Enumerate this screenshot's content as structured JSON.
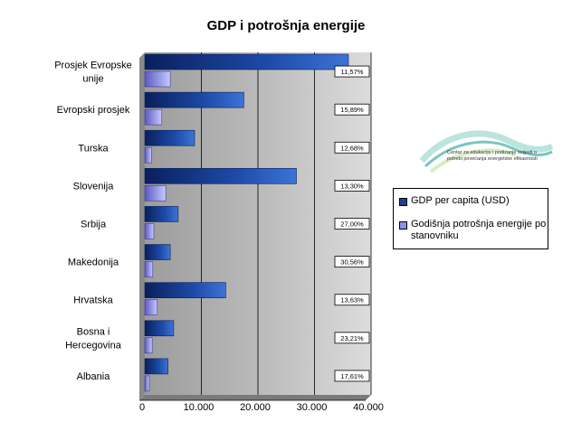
{
  "chart_data": {
    "type": "bar",
    "title": "GDP i potrošnja energije",
    "categories": [
      "Prosjek Evropske unije",
      "Evropski prosjek",
      "Turska",
      "Slovenija",
      "Srbija",
      "Makedonija",
      "Hrvatska",
      "Bosna i Hercegovina",
      "Albania"
    ],
    "category_lines": [
      [
        "Prosjek Evropske",
        "unije"
      ],
      [
        "Evropski prosjek"
      ],
      [
        "Turska"
      ],
      [
        "Slovenija"
      ],
      [
        "Srbija"
      ],
      [
        "Makedonija"
      ],
      [
        "Hrvatska"
      ],
      [
        "Bosna i",
        "Hercegovina"
      ],
      [
        "Albania"
      ]
    ],
    "series": [
      {
        "name": "GDP per capita (USD)",
        "values": [
          36000,
          17500,
          8800,
          26800,
          5900,
          4500,
          14300,
          5100,
          4100
        ],
        "color": "#1f3f8f"
      },
      {
        "name": "Godišnja potrošnja energije po stanovniku",
        "values": [
          4500,
          3000,
          1200,
          3700,
          1600,
          1400,
          2200,
          1300,
          800
        ],
        "color": "#8f8fe8"
      }
    ],
    "annotations": [
      "11,57%",
      "15,89%",
      "12,68%",
      "13,30%",
      "27,00%",
      "30,56%",
      "13,63%",
      "23,21%",
      "17,61%"
    ],
    "xlim": [
      0,
      40000
    ],
    "x_ticks": [
      0,
      10000,
      20000,
      30000,
      40000
    ],
    "x_tick_labels": [
      "0",
      "10.000",
      "20.000",
      "30.000",
      "40.000"
    ],
    "orientation": "horizontal",
    "grid": true,
    "legend_position": "right"
  },
  "legend": {
    "items": [
      {
        "label": "GDP per capita (USD)",
        "color": "#1f3f8f"
      },
      {
        "label": "Godišnja potrošnja energije po stanovniku",
        "color": "#8f8fe8"
      }
    ]
  },
  "logo": {
    "text": "Centar za edukaciju i podizanje svijesti o potrebi povećanja energetske efikasnosti"
  }
}
